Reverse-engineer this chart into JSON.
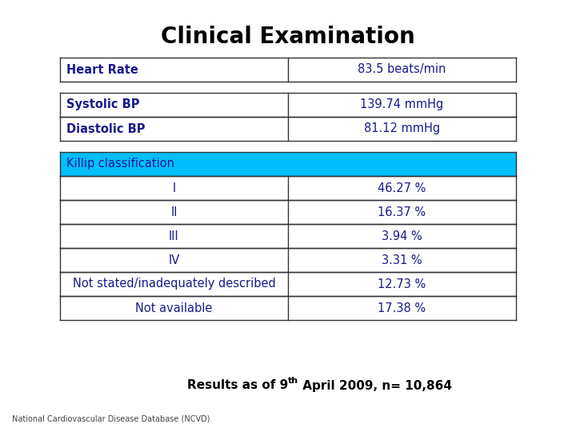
{
  "title": "Clinical Examination",
  "title_fontsize": 20,
  "title_fontweight": "bold",
  "text_color": "#1a1a8c",
  "background_color": "#ffffff",
  "footnote": "National Cardiovascular Disease Database (NCVD)",
  "sections": [
    {
      "rows": [
        {
          "label": "Heart Rate",
          "value": "83.5 beats/min",
          "label_align": "left",
          "value_align": "center",
          "bg": "#ffffff"
        }
      ],
      "header": null
    },
    {
      "rows": [
        {
          "label": "Systolic BP",
          "value": "139.74 mmHg",
          "label_align": "left",
          "value_align": "center",
          "bg": "#ffffff"
        },
        {
          "label": "Diastolic BP",
          "value": "81.12 mmHg",
          "label_align": "left",
          "value_align": "center",
          "bg": "#ffffff"
        }
      ],
      "header": null
    },
    {
      "header": "Killip classification",
      "header_bg": "#00bfff",
      "rows": [
        {
          "label": "I",
          "value": "46.27 %",
          "label_align": "center",
          "value_align": "center",
          "bg": "#ffffff"
        },
        {
          "label": "II",
          "value": "16.37 %",
          "label_align": "center",
          "value_align": "center",
          "bg": "#ffffff"
        },
        {
          "label": "III",
          "value": "3.94 %",
          "label_align": "center",
          "value_align": "center",
          "bg": "#ffffff"
        },
        {
          "label": "IV",
          "value": "3.31 %",
          "label_align": "center",
          "value_align": "center",
          "bg": "#ffffff"
        },
        {
          "label": "Not stated/inadequately described",
          "value": "12.73 %",
          "label_align": "center",
          "value_align": "center",
          "bg": "#ffffff"
        },
        {
          "label": "Not available",
          "value": "17.38 %",
          "label_align": "center",
          "value_align": "center",
          "bg": "#ffffff"
        }
      ]
    }
  ]
}
